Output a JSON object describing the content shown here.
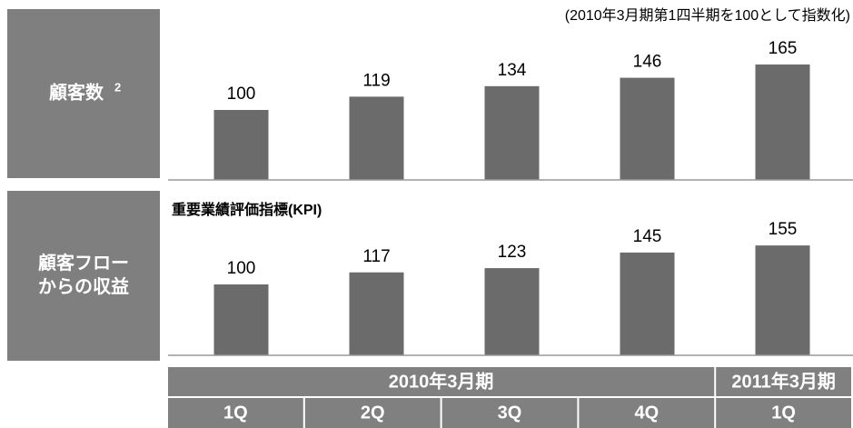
{
  "note": "(2010年3月期第1四半期を100として指数化)",
  "chart_data": [
    {
      "type": "bar",
      "row_label": "顧客数",
      "row_label_sup": "2",
      "values": [
        100,
        119,
        134,
        146,
        165
      ],
      "color": "#6b6b6b",
      "ylim": [
        0,
        200
      ]
    },
    {
      "type": "bar",
      "row_label": [
        "顧客フロー",
        "からの収益"
      ],
      "subtitle": "重要業績評価指標(KPI)",
      "values": [
        100,
        117,
        123,
        145,
        155
      ],
      "color": "#6b6b6b",
      "ylim": [
        0,
        200
      ]
    }
  ],
  "x_axis": {
    "categories": [
      "1Q",
      "2Q",
      "3Q",
      "4Q",
      "1Q"
    ],
    "groups": [
      {
        "label": "2010年3月期",
        "span": 4
      },
      {
        "label": "2011年3月期",
        "span": 1
      }
    ]
  }
}
